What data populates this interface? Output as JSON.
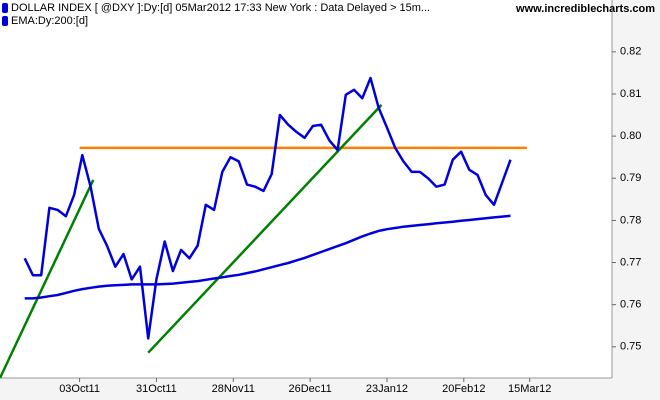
{
  "chart_data": {
    "type": "line",
    "source": "www.incrediblecharts.com",
    "x": [
      "2011-09-13",
      "2011-09-16",
      "2011-09-19",
      "2011-09-22",
      "2011-09-25",
      "2011-09-28",
      "2011-10-01",
      "2011-10-04",
      "2011-10-07",
      "2011-10-10",
      "2011-10-13",
      "2011-10-16",
      "2011-10-19",
      "2011-10-22",
      "2011-10-25",
      "2011-10-28",
      "2011-10-31",
      "2011-11-03",
      "2011-11-06",
      "2011-11-09",
      "2011-11-12",
      "2011-11-15",
      "2011-11-18",
      "2011-11-21",
      "2011-11-24",
      "2011-11-27",
      "2011-11-30",
      "2011-12-03",
      "2011-12-06",
      "2011-12-09",
      "2011-12-12",
      "2011-12-15",
      "2011-12-18",
      "2011-12-21",
      "2011-12-24",
      "2011-12-27",
      "2011-12-30",
      "2012-01-02",
      "2012-01-05",
      "2012-01-08",
      "2012-01-11",
      "2012-01-14",
      "2012-01-17",
      "2012-01-20",
      "2012-01-23",
      "2012-01-26",
      "2012-01-29",
      "2012-02-01",
      "2012-02-04",
      "2012-02-07",
      "2012-02-10",
      "2012-02-13",
      "2012-02-16",
      "2012-02-19",
      "2012-02-22",
      "2012-02-25",
      "2012-02-28",
      "2012-03-02",
      "2012-03-05",
      "2012-03-08"
    ],
    "series": [
      {
        "name": "DOLLAR INDEX [ @DXY ]:Dy:[d]  05Mar2012 17:33 New York : Data Delayed > 15m...",
        "color": "#0000dd",
        "values": [
          0.771,
          0.767,
          0.767,
          0.783,
          0.7825,
          0.781,
          0.786,
          0.7955,
          0.788,
          0.778,
          0.774,
          0.769,
          0.772,
          0.766,
          0.769,
          0.752,
          0.766,
          0.775,
          0.768,
          0.773,
          0.771,
          0.774,
          0.7837,
          0.7825,
          0.7915,
          0.795,
          0.794,
          0.7885,
          0.788,
          0.787,
          0.791,
          0.805,
          0.8027,
          0.801,
          0.7996,
          0.8024,
          0.8027,
          0.799,
          0.7967,
          0.8098,
          0.811,
          0.809,
          0.8138,
          0.8067,
          0.802,
          0.7972,
          0.794,
          0.7915,
          0.7915,
          0.79,
          0.788,
          0.7885,
          0.7944,
          0.7963,
          0.792,
          0.7908,
          0.786,
          0.7837,
          0.789,
          0.7944
        ]
      },
      {
        "name": "EMA:Dy:200:[d]",
        "color": "#0000dd",
        "values": [
          0.7615,
          0.7615,
          0.7617,
          0.762,
          0.7623,
          0.7628,
          0.7633,
          0.7637,
          0.764,
          0.7643,
          0.7645,
          0.7646,
          0.7647,
          0.7648,
          0.7648,
          0.7648,
          0.7648,
          0.7649,
          0.765,
          0.7652,
          0.7654,
          0.7656,
          0.7659,
          0.7662,
          0.7665,
          0.7668,
          0.7671,
          0.7675,
          0.7679,
          0.7684,
          0.7689,
          0.7694,
          0.7699,
          0.7705,
          0.7711,
          0.7718,
          0.7725,
          0.7732,
          0.7739,
          0.7746,
          0.7754,
          0.7762,
          0.7769,
          0.7775,
          0.7779,
          0.7782,
          0.7785,
          0.7787,
          0.7789,
          0.7791,
          0.7793,
          0.7795,
          0.7797,
          0.7799,
          0.7801,
          0.7803,
          0.7805,
          0.7807,
          0.7809,
          0.7811
        ]
      }
    ],
    "trendlines": [
      {
        "color": "#ff8000",
        "x": [
          "2011-10-03",
          "2012-03-14"
        ],
        "values": [
          0.7972,
          0.7972
        ]
      },
      {
        "color": "#008000",
        "x": [
          "2011-09-04",
          "2011-10-08"
        ],
        "values": [
          0.7426,
          0.7896
        ]
      },
      {
        "color": "#008000",
        "x": [
          "2011-10-28",
          "2012-01-21"
        ],
        "values": [
          0.7486,
          0.8074
        ]
      }
    ],
    "xlim": [
      "2011-09-04",
      "2012-04-14"
    ],
    "xticks": [
      {
        "value": "2011-10-03",
        "label": "03Oct11"
      },
      {
        "value": "2011-10-31",
        "label": "31Oct11"
      },
      {
        "value": "2011-11-28",
        "label": "28Nov11"
      },
      {
        "value": "2011-12-26",
        "label": "26Dec11"
      },
      {
        "value": "2012-01-23",
        "label": "23Jan12"
      },
      {
        "value": "2012-02-20",
        "label": "20Feb12"
      },
      {
        "value": "2012-03-15",
        "label": "15Mar12"
      }
    ],
    "ylim": [
      0.7426,
      0.8323
    ],
    "yticks": [
      0.75,
      0.76,
      0.77,
      0.78,
      0.79,
      {
        "value": 0.8,
        "label": "0.80"
      },
      0.81,
      0.82
    ]
  }
}
